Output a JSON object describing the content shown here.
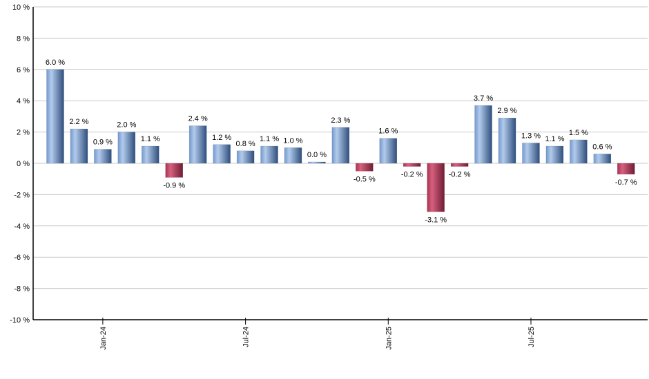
{
  "chart_data": {
    "type": "bar",
    "title": "",
    "xlabel": "",
    "ylabel": "",
    "ylim": [
      -10,
      10
    ],
    "y_tick_step": 2,
    "grid": true,
    "value_suffix": " %",
    "bars": [
      {
        "value": 6.0,
        "label": "6.0 %"
      },
      {
        "value": 2.2,
        "label": "2.2 %"
      },
      {
        "value": 0.9,
        "label": "0.9 %"
      },
      {
        "value": 2.0,
        "label": "2.0 %"
      },
      {
        "value": 1.1,
        "label": "1.1 %"
      },
      {
        "value": -0.9,
        "label": "-0.9 %"
      },
      {
        "value": 2.4,
        "label": "2.4 %"
      },
      {
        "value": 1.2,
        "label": "1.2 %"
      },
      {
        "value": 0.8,
        "label": "0.8 %"
      },
      {
        "value": 1.1,
        "label": "1.1 %"
      },
      {
        "value": 1.0,
        "label": "1.0 %"
      },
      {
        "value": 0.0,
        "label": "0.0 %"
      },
      {
        "value": 2.3,
        "label": "2.3 %"
      },
      {
        "value": -0.5,
        "label": "-0.5 %"
      },
      {
        "value": 1.6,
        "label": "1.6 %"
      },
      {
        "value": -0.2,
        "label": "-0.2 %"
      },
      {
        "value": -3.1,
        "label": "-3.1 %"
      },
      {
        "value": -0.2,
        "label": "-0.2 %"
      },
      {
        "value": 3.7,
        "label": "3.7 %"
      },
      {
        "value": 2.9,
        "label": "2.9 %"
      },
      {
        "value": 1.3,
        "label": "1.3 %"
      },
      {
        "value": 1.1,
        "label": "1.1 %"
      },
      {
        "value": 1.5,
        "label": "1.5 %"
      },
      {
        "value": 0.6,
        "label": "0.6 %"
      },
      {
        "value": -0.7,
        "label": "-0.7 %"
      }
    ],
    "x_ticks": [
      {
        "label": "Jan-24",
        "bar_index": 2
      },
      {
        "label": "Jul-24",
        "bar_index": 8
      },
      {
        "label": "Jan-25",
        "bar_index": 14
      },
      {
        "label": "Jul-25",
        "bar_index": 20
      }
    ],
    "y_ticks": [
      {
        "value": 10,
        "label": "10 %"
      },
      {
        "value": 8,
        "label": "8 %"
      },
      {
        "value": 6,
        "label": "6 %"
      },
      {
        "value": 4,
        "label": "4 %"
      },
      {
        "value": 2,
        "label": "2 %"
      },
      {
        "value": 0,
        "label": "0 %"
      },
      {
        "value": -2,
        "label": "-2 %"
      },
      {
        "value": -4,
        "label": "-4 %"
      },
      {
        "value": -6,
        "label": "-6 %"
      },
      {
        "value": -8,
        "label": "-8 %"
      },
      {
        "value": -10,
        "label": "-10 %"
      }
    ],
    "legend": [],
    "colors": {
      "positive_gradient": [
        "#7499cd",
        "#b2cbec",
        "#2f4e7c"
      ],
      "negative_gradient": [
        "#a63353",
        "#d7607e",
        "#6f1c34"
      ],
      "positive_edge": "#2f4e7c",
      "negative_edge": "#6f1c34",
      "gridline": "#c9c9c9",
      "axis": "#000000",
      "label_text": "#000000",
      "background": "#ffffff"
    }
  }
}
